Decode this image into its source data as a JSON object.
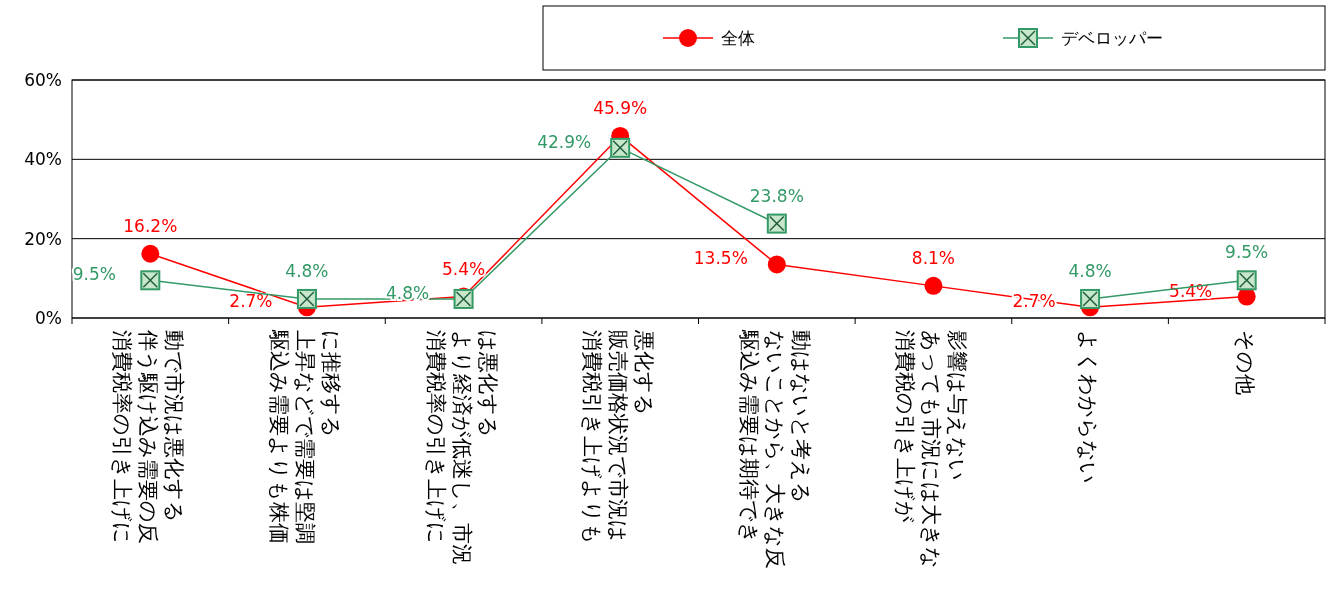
{
  "chart_data": {
    "type": "line",
    "categories": [
      "消費税率の引き上げに伴う駆け込み需要の反動で市況は悪化する",
      "駆込み需要よりも株価上昇などで需要は堅調に推移する",
      "消費税率の引き上げにより経済が低迷し、市況は悪化する",
      "消費税引き上げよりも販売価格状況で市況は悪化する",
      "駆込み需要は期待できないことから、大きな反動はないと考える",
      "消費税の引き上げがあっても市況には大きな影響は与えない",
      "よくわからない",
      "その他"
    ],
    "series": [
      {
        "name": "全体",
        "color": "#ff0000",
        "marker": "circle",
        "values": [
          16.2,
          2.7,
          5.4,
          45.9,
          13.5,
          8.1,
          2.7,
          5.4
        ],
        "value_labels": [
          "16.2%",
          "2.7%",
          "5.4%",
          "45.9%",
          "13.5%",
          "8.1%",
          "2.7%",
          "5.4%"
        ]
      },
      {
        "name": "デベロッパー",
        "color": "#339966",
        "marker": "square",
        "values": [
          9.5,
          4.8,
          4.8,
          42.9,
          23.8,
          null,
          4.8,
          9.5
        ],
        "value_labels": [
          "9.5%",
          "4.8%",
          "4.8%",
          "42.9%",
          "23.8%",
          null,
          "4.8%",
          "9.5%"
        ]
      }
    ],
    "ylim": [
      0,
      60
    ],
    "yticks": [
      {
        "value": 0,
        "label": "0%"
      },
      {
        "value": 20,
        "label": "20%"
      },
      {
        "value": 40,
        "label": "40%"
      },
      {
        "value": 60,
        "label": "60%"
      }
    ],
    "grid": "y",
    "legend": "top right"
  }
}
